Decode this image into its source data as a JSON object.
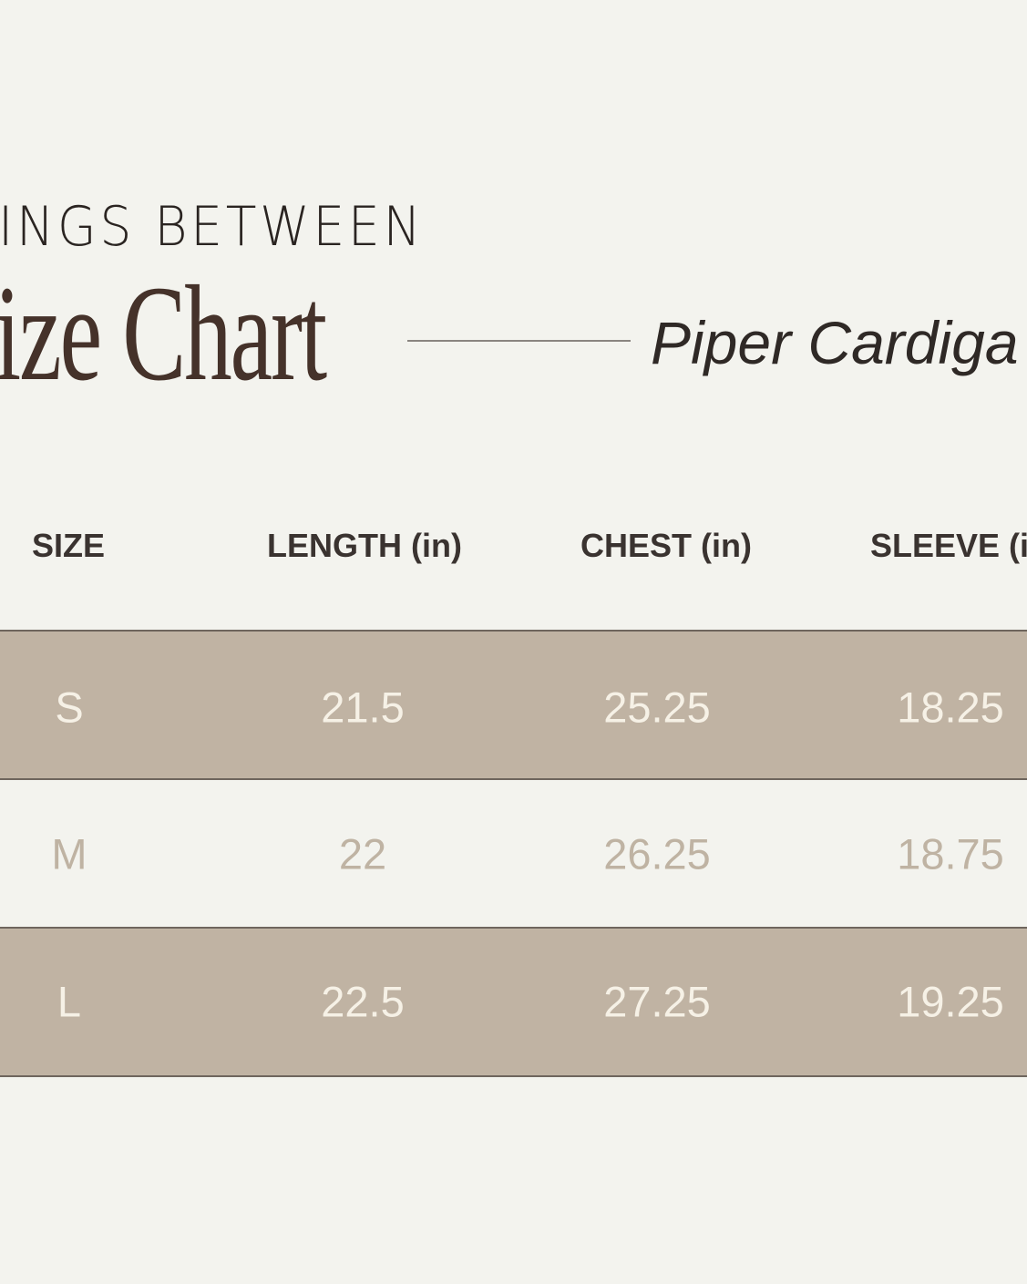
{
  "header": {
    "brand_partial": "INGS BETWEEN",
    "title_partial": "ize Chart",
    "product_partial": "Piper Cardiga"
  },
  "table": {
    "columns": [
      "SIZE",
      "LENGTH (in)",
      "CHEST (in)",
      "SLEEVE (i"
    ],
    "rows": [
      {
        "size": "S",
        "length": "21.5",
        "chest": "25.25",
        "sleeve": "18.25",
        "shaded": true
      },
      {
        "size": "M",
        "length": "22",
        "chest": "26.25",
        "sleeve": "18.75",
        "shaded": false
      },
      {
        "size": "L",
        "length": "22.5",
        "chest": "27.25",
        "sleeve": "19.25",
        "shaded": true
      }
    ]
  },
  "colors": {
    "background": "#f3f3ee",
    "band": "#c0b3a3",
    "title": "#45322a",
    "band_text": "#f6f1e6",
    "plain_row_text": "#bfb3a3"
  }
}
